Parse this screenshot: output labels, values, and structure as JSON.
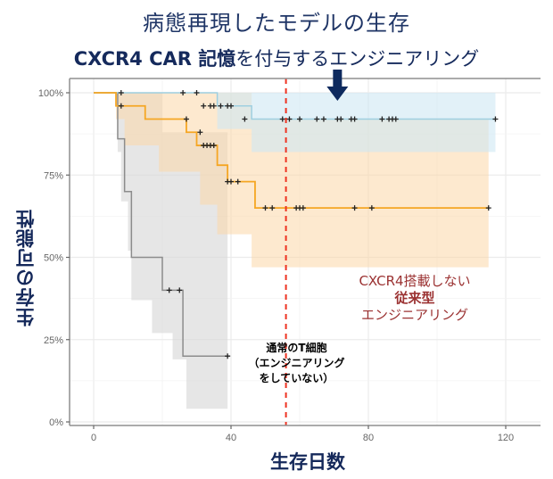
{
  "title": {
    "line1": "病態再現したモデルの生存",
    "line2_bold": "CXCR4 CAR 記憶",
    "line2_rest": "を付与するエンジニアリング"
  },
  "axes": {
    "ylabel": "生存の可能性",
    "xlabel": "生存日数",
    "yticks": [
      "0%",
      "25%",
      "50%",
      "75%",
      "100%"
    ],
    "xticks": [
      "0",
      "40",
      "80",
      "120"
    ]
  },
  "annotations": {
    "conventional_line1": "CXCR4搭載しない",
    "conventional_line2": "従来型",
    "conventional_line3": "エンジニアリング",
    "normal_line1": "通常のT細胞",
    "normal_line2": "（エンジニアリング",
    "normal_line3": "をしていない）"
  },
  "colors": {
    "cxcr4_line": "#9ecfe0",
    "cxcr4_band": "#cfe8f3",
    "conventional_line": "#f5a623",
    "conventional_band": "#fcd7a8",
    "normal_line": "#8c8c8c",
    "normal_band": "#d9d9d9",
    "ref_line": "#ee3322",
    "title": "#1f3566",
    "arrow": "#0e2a5e"
  },
  "chart_data": {
    "type": "line",
    "subtype": "kaplan-meier step survival curves with confidence bands",
    "title": "病態再現したモデルの生存 / CXCR4 CAR 記憶を付与するエンジニアリング",
    "xlabel": "生存日数",
    "ylabel": "生存の可能性",
    "xlim": [
      -2,
      130
    ],
    "ylim": [
      0,
      100
    ],
    "x_ticks": [
      0,
      40,
      80,
      120
    ],
    "y_ticks": [
      0,
      25,
      50,
      75,
      100
    ],
    "y_tick_format": "percent",
    "grid": true,
    "reference_line": {
      "x": 56,
      "style": "dashed",
      "color": "#ee3322"
    },
    "series": [
      {
        "name": "CXCR4 CAR 記憶を付与するエンジニアリング",
        "color": "#9ecfe0",
        "band_color": "#cfe8f3",
        "steps": [
          [
            0,
            100
          ],
          [
            36,
            100
          ],
          [
            36,
            96
          ],
          [
            46,
            96
          ],
          [
            46,
            92
          ],
          [
            117,
            92
          ]
        ],
        "ci_upper": [
          [
            26,
            100
          ],
          [
            117,
            100
          ]
        ],
        "ci_lower": [
          [
            36,
            100
          ],
          [
            36,
            89
          ],
          [
            46,
            89
          ],
          [
            46,
            82
          ],
          [
            117,
            82
          ]
        ],
        "censored": [
          [
            8,
            100
          ],
          [
            26,
            100
          ],
          [
            30,
            100
          ],
          [
            32,
            96
          ],
          [
            34,
            96
          ],
          [
            35,
            96
          ],
          [
            37,
            96
          ],
          [
            39,
            96
          ],
          [
            40,
            96
          ],
          [
            44,
            92
          ],
          [
            55,
            92
          ],
          [
            57,
            92
          ],
          [
            60,
            92
          ],
          [
            65,
            92
          ],
          [
            67,
            92
          ],
          [
            71,
            92
          ],
          [
            72,
            92
          ],
          [
            75,
            92
          ],
          [
            76,
            92
          ],
          [
            84,
            92
          ],
          [
            86,
            92
          ],
          [
            87,
            92
          ],
          [
            88,
            92
          ],
          [
            117,
            92
          ]
        ]
      },
      {
        "name": "CXCR4搭載しない 従来型エンジニアリング",
        "color": "#f5a623",
        "band_color": "#fcd7a8",
        "steps": [
          [
            0,
            100
          ],
          [
            6.5,
            100
          ],
          [
            6.5,
            96
          ],
          [
            15,
            96
          ],
          [
            15,
            92
          ],
          [
            27,
            92
          ],
          [
            27,
            88
          ],
          [
            30,
            88
          ],
          [
            30,
            84
          ],
          [
            36,
            84
          ],
          [
            36,
            78
          ],
          [
            39,
            78
          ],
          [
            39,
            73
          ],
          [
            47,
            73
          ],
          [
            47,
            65
          ],
          [
            115,
            65
          ]
        ],
        "ci_upper": [
          [
            6.5,
            100
          ],
          [
            46,
            100
          ],
          [
            46,
            92
          ],
          [
            115,
            92
          ]
        ],
        "ci_lower": [
          [
            6.5,
            92
          ],
          [
            9,
            92
          ],
          [
            9,
            84
          ],
          [
            19,
            84
          ],
          [
            19,
            76
          ],
          [
            31,
            76
          ],
          [
            31,
            66
          ],
          [
            36,
            66
          ],
          [
            36,
            57
          ],
          [
            46,
            57
          ],
          [
            46,
            47
          ],
          [
            115,
            47
          ]
        ],
        "censored": [
          [
            8,
            96
          ],
          [
            27,
            92
          ],
          [
            31,
            88
          ],
          [
            32,
            84
          ],
          [
            33,
            84
          ],
          [
            34,
            84
          ],
          [
            35,
            84
          ],
          [
            39,
            73
          ],
          [
            40,
            73
          ],
          [
            42,
            73
          ],
          [
            50,
            65
          ],
          [
            52,
            65
          ],
          [
            59,
            65
          ],
          [
            60,
            65
          ],
          [
            61,
            65
          ],
          [
            76,
            65
          ],
          [
            81,
            65
          ],
          [
            115,
            65
          ]
        ]
      },
      {
        "name": "通常のT細胞（エンジニアリングをしていない）",
        "color": "#8c8c8c",
        "band_color": "#d9d9d9",
        "steps": [
          [
            0,
            100
          ],
          [
            7,
            100
          ],
          [
            7,
            86
          ],
          [
            9,
            86
          ],
          [
            9,
            70
          ],
          [
            11,
            70
          ],
          [
            11,
            50
          ],
          [
            20,
            50
          ],
          [
            20,
            40
          ],
          [
            26,
            40
          ],
          [
            26,
            20
          ],
          [
            39,
            20
          ]
        ],
        "ci_upper": [
          [
            7,
            100
          ],
          [
            20,
            100
          ],
          [
            20,
            88
          ],
          [
            39,
            88
          ]
        ],
        "ci_lower": [
          [
            7,
            82
          ],
          [
            8,
            82
          ],
          [
            8,
            67
          ],
          [
            10,
            67
          ],
          [
            10,
            52
          ],
          [
            11,
            52
          ],
          [
            11,
            37
          ],
          [
            17,
            37
          ],
          [
            17,
            27
          ],
          [
            23,
            27
          ],
          [
            23,
            19
          ],
          [
            27,
            19
          ],
          [
            27,
            4
          ],
          [
            39,
            4
          ]
        ],
        "censored": [
          [
            22,
            40
          ],
          [
            25,
            40
          ],
          [
            39,
            20
          ]
        ]
      }
    ],
    "annotations": [
      {
        "text": "CXCR4搭載しない 従来型 エンジニアリング",
        "color": "#9b3232",
        "near": "orange curve"
      },
      {
        "text": "通常のT細胞（エンジニアリングをしていない）",
        "color": "#000000",
        "near": "gray curve"
      },
      {
        "text": "arrow pointing down to blue curve",
        "color": "#0e2a5e",
        "x": 71
      }
    ]
  }
}
